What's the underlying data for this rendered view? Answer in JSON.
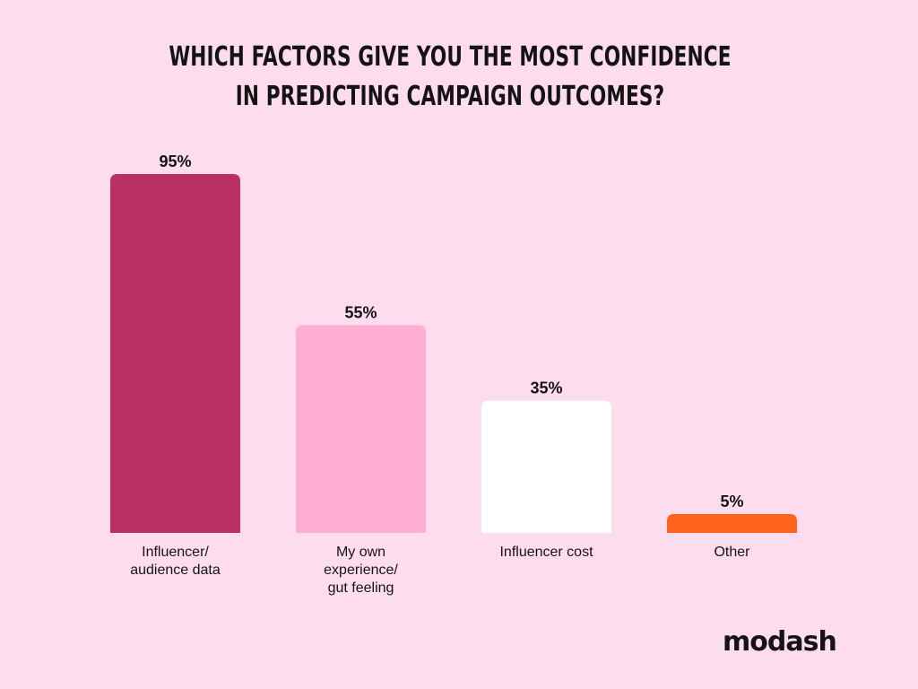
{
  "chart_data": {
    "type": "bar",
    "title_lines": [
      "Which factors give you the most confidence",
      "in predicting campaign outcomes?"
    ],
    "categories": [
      [
        "Influencer/",
        "audience data"
      ],
      [
        "My own",
        "experience/",
        "gut feeling"
      ],
      [
        "Influencer cost"
      ],
      [
        "Other"
      ]
    ],
    "values": [
      95,
      55,
      35,
      5
    ],
    "value_labels": [
      "95%",
      "55%",
      "35%",
      "5%"
    ],
    "colors": [
      "#B83064",
      "#FFAED3",
      "#FFFFFF",
      "#FF6319"
    ],
    "ylim": [
      0,
      100
    ],
    "grid": false
  },
  "brand": {
    "logo_text": "modash"
  }
}
